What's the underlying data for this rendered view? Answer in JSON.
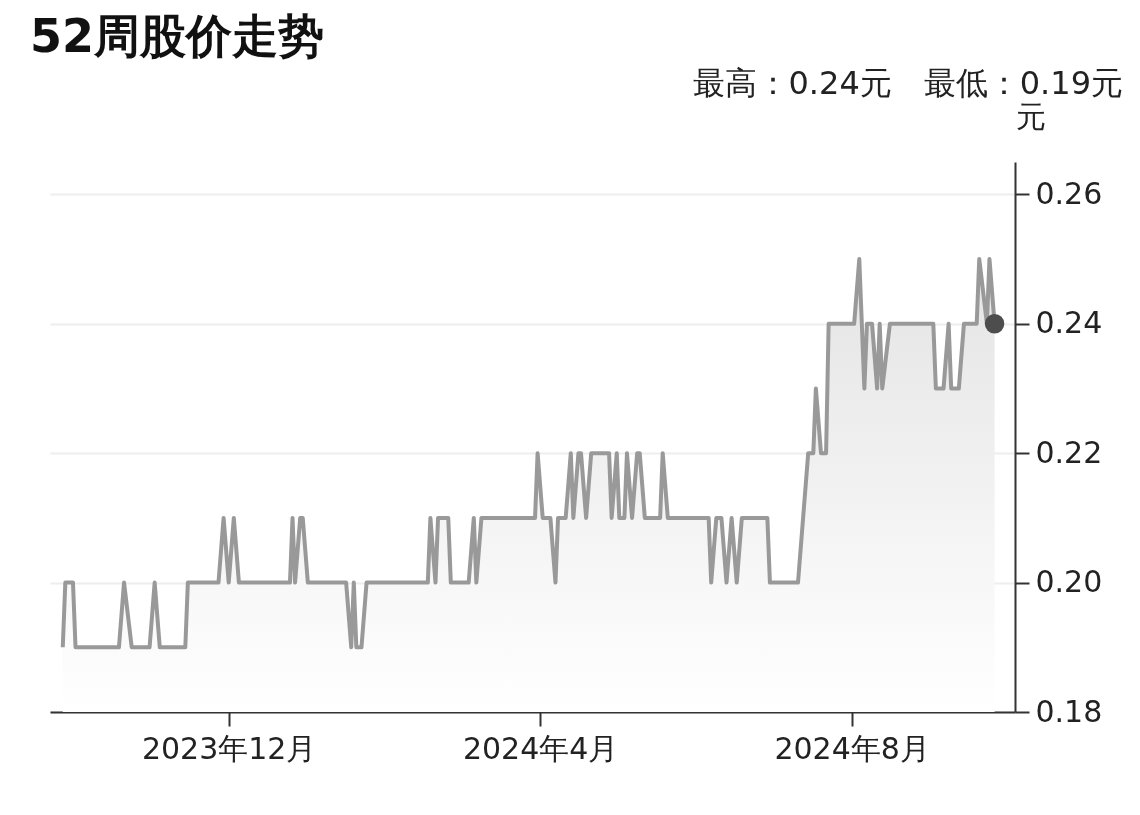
{
  "chart_data": {
    "type": "area",
    "title": "52周股价走势",
    "subtitle": "最高：0.24元　最低：0.19元",
    "ylabel": "元",
    "xlim": [
      "2023-09-22",
      "2024-10-04"
    ],
    "xticks": [
      {
        "value": "2023-12-01",
        "label": "2023年12月"
      },
      {
        "value": "2024-04-01",
        "label": "2024年4月"
      },
      {
        "value": "2024-08-01",
        "label": "2024年8月"
      }
    ],
    "ylim": [
      0.18,
      0.265
    ],
    "yticks": [
      {
        "value": 0.18,
        "label": "0.18"
      },
      {
        "value": 0.2,
        "label": "0.20"
      },
      {
        "value": 0.22,
        "label": "0.22"
      },
      {
        "value": 0.24,
        "label": "0.24"
      },
      {
        "value": 0.26,
        "label": "0.26"
      }
    ],
    "grid": "y",
    "series": [
      {
        "color": "#999999",
        "x": [
          "2023-09-27",
          "2023-09-28",
          "2023-10-01",
          "2023-10-02",
          "2023-10-19",
          "2023-10-21",
          "2023-10-24",
          "2023-10-31",
          "2023-11-02",
          "2023-11-04",
          "2023-11-14",
          "2023-11-15",
          "2023-11-27",
          "2023-11-29",
          "2023-12-01",
          "2023-12-03",
          "2023-12-05",
          "2023-12-25",
          "2023-12-26",
          "2023-12-27",
          "2023-12-29",
          "2023-12-30",
          "2024-01-01",
          "2024-01-16",
          "2024-01-18",
          "2024-01-19",
          "2024-01-20",
          "2024-01-22",
          "2024-01-24",
          "2024-02-17",
          "2024-02-18",
          "2024-02-20",
          "2024-02-21",
          "2024-02-25",
          "2024-02-26",
          "2024-03-04",
          "2024-03-06",
          "2024-03-07",
          "2024-03-09",
          "2024-03-30",
          "2024-03-31",
          "2024-04-02",
          "2024-04-05",
          "2024-04-07",
          "2024-04-08",
          "2024-04-11",
          "2024-04-13",
          "2024-04-14",
          "2024-04-16",
          "2024-04-17",
          "2024-04-19",
          "2024-04-21",
          "2024-04-28",
          "2024-04-29",
          "2024-05-01",
          "2024-05-02",
          "2024-05-04",
          "2024-05-05",
          "2024-05-07",
          "2024-05-09",
          "2024-05-10",
          "2024-05-12",
          "2024-05-18",
          "2024-05-19",
          "2024-05-21",
          "2024-06-06",
          "2024-06-07",
          "2024-06-09",
          "2024-06-11",
          "2024-06-13",
          "2024-06-15",
          "2024-06-17",
          "2024-06-19",
          "2024-06-29",
          "2024-06-30",
          "2024-07-11",
          "2024-07-15",
          "2024-07-17",
          "2024-07-18",
          "2024-07-20",
          "2024-07-22",
          "2024-07-23",
          "2024-08-02",
          "2024-08-04",
          "2024-08-06",
          "2024-08-07",
          "2024-08-09",
          "2024-08-11",
          "2024-08-12",
          "2024-08-13",
          "2024-08-16",
          "2024-09-02",
          "2024-09-03",
          "2024-09-06",
          "2024-09-08",
          "2024-09-09",
          "2024-09-12",
          "2024-09-14",
          "2024-09-19",
          "2024-09-20",
          "2024-09-23",
          "2024-09-24",
          "2024-09-26"
        ],
        "values": [
          0.19,
          0.2,
          0.2,
          0.19,
          0.19,
          0.2,
          0.19,
          0.19,
          0.2,
          0.19,
          0.19,
          0.2,
          0.2,
          0.21,
          0.2,
          0.21,
          0.2,
          0.2,
          0.21,
          0.2,
          0.21,
          0.21,
          0.2,
          0.2,
          0.19,
          0.2,
          0.19,
          0.19,
          0.2,
          0.2,
          0.21,
          0.2,
          0.21,
          0.21,
          0.2,
          0.2,
          0.21,
          0.2,
          0.21,
          0.21,
          0.22,
          0.21,
          0.21,
          0.2,
          0.21,
          0.21,
          0.22,
          0.21,
          0.22,
          0.22,
          0.21,
          0.22,
          0.22,
          0.21,
          0.22,
          0.21,
          0.21,
          0.22,
          0.21,
          0.22,
          0.22,
          0.21,
          0.21,
          0.22,
          0.21,
          0.21,
          0.2,
          0.21,
          0.21,
          0.2,
          0.21,
          0.2,
          0.21,
          0.21,
          0.2,
          0.2,
          0.22,
          0.22,
          0.23,
          0.22,
          0.22,
          0.24,
          0.24,
          0.25,
          0.23,
          0.24,
          0.24,
          0.23,
          0.24,
          0.23,
          0.24,
          0.24,
          0.23,
          0.23,
          0.24,
          0.23,
          0.23,
          0.24,
          0.24,
          0.25,
          0.24,
          0.25,
          0.24
        ]
      },
      {
        "type": "scatter",
        "color": "#4d4d4d",
        "x": [
          "2024-09-26"
        ],
        "values": [
          0.24
        ]
      }
    ]
  }
}
